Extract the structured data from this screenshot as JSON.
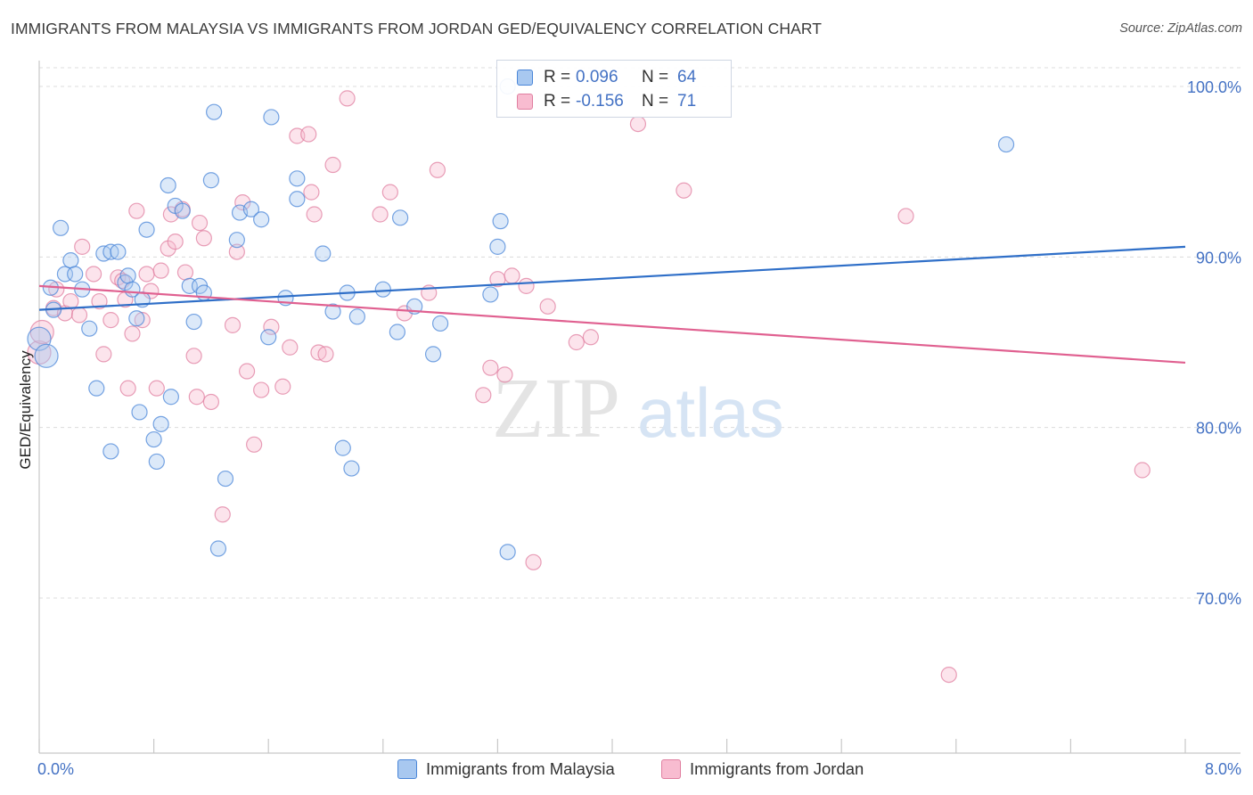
{
  "title": "IMMIGRANTS FROM MALAYSIA VS IMMIGRANTS FROM JORDAN GED/EQUIVALENCY CORRELATION CHART",
  "source": "Source: ZipAtlas.com",
  "watermark": {
    "zip": "ZIP",
    "atlas": "atlas"
  },
  "colors": {
    "malaysia_fill": "#a8c8f0",
    "malaysia_stroke": "#4a86d8",
    "malaysia_line": "#2f6fc8",
    "jordan_fill": "#f8bcd0",
    "jordan_stroke": "#e07fa0",
    "jordan_line": "#e06090",
    "tick_text": "#4472c4",
    "grid": "#dcdcdc"
  },
  "legend": {
    "rows": [
      {
        "r_label": "R =",
        "r_value": "0.096",
        "n_label": "N =",
        "n_value": "64"
      },
      {
        "r_label": "R =",
        "r_value": "-0.156",
        "n_label": "N =",
        "n_value": "71"
      }
    ],
    "bottom": [
      "Immigrants from Malaysia",
      "Immigrants from Jordan"
    ]
  },
  "chart_data": {
    "type": "scatter",
    "title": "IMMIGRANTS FROM MALAYSIA VS IMMIGRANTS FROM JORDAN GED/EQUIVALENCY CORRELATION CHART",
    "xlabel": "",
    "ylabel": "GED/Equivalency",
    "xlim": [
      0,
      8
    ],
    "ylim": [
      60,
      102
    ],
    "x_tick_labels": [
      "0.0%",
      "8.0%"
    ],
    "y_ticks": [
      70,
      80,
      90,
      100
    ],
    "y_tick_labels": [
      "70.0%",
      "80.0%",
      "90.0%",
      "100.0%"
    ],
    "grid": true,
    "legend_position": "top-center",
    "series": [
      {
        "name": "Immigrants from Malaysia",
        "r": 0.096,
        "n": 64,
        "trend": {
          "x": [
            0,
            8
          ],
          "y": [
            86.9,
            90.6
          ]
        },
        "points": [
          [
            0.0,
            85.2
          ],
          [
            0.05,
            84.2
          ],
          [
            0.08,
            88.2
          ],
          [
            0.1,
            86.9
          ],
          [
            0.15,
            91.7
          ],
          [
            0.18,
            89.0
          ],
          [
            0.22,
            89.8
          ],
          [
            0.25,
            89.0
          ],
          [
            0.3,
            88.1
          ],
          [
            0.35,
            85.8
          ],
          [
            0.4,
            82.3
          ],
          [
            0.45,
            90.2
          ],
          [
            0.5,
            90.3
          ],
          [
            0.5,
            78.6
          ],
          [
            0.55,
            90.3
          ],
          [
            0.6,
            88.5
          ],
          [
            0.62,
            88.9
          ],
          [
            0.65,
            88.1
          ],
          [
            0.68,
            86.4
          ],
          [
            0.7,
            80.9
          ],
          [
            0.72,
            87.5
          ],
          [
            0.75,
            91.6
          ],
          [
            0.8,
            79.3
          ],
          [
            0.82,
            78.0
          ],
          [
            0.85,
            80.2
          ],
          [
            0.9,
            94.2
          ],
          [
            0.92,
            81.8
          ],
          [
            0.95,
            93.0
          ],
          [
            1.0,
            92.7
          ],
          [
            1.05,
            88.3
          ],
          [
            1.08,
            86.2
          ],
          [
            1.12,
            88.3
          ],
          [
            1.15,
            87.9
          ],
          [
            1.2,
            94.5
          ],
          [
            1.22,
            98.5
          ],
          [
            1.25,
            72.9
          ],
          [
            1.3,
            77.0
          ],
          [
            1.38,
            91.0
          ],
          [
            1.4,
            92.6
          ],
          [
            1.48,
            92.8
          ],
          [
            1.55,
            92.2
          ],
          [
            1.6,
            85.3
          ],
          [
            1.62,
            98.2
          ],
          [
            1.72,
            87.6
          ],
          [
            1.8,
            94.6
          ],
          [
            1.8,
            93.4
          ],
          [
            1.98,
            90.2
          ],
          [
            2.05,
            86.8
          ],
          [
            2.12,
            78.8
          ],
          [
            2.15,
            87.9
          ],
          [
            2.18,
            77.6
          ],
          [
            2.22,
            86.5
          ],
          [
            2.4,
            88.1
          ],
          [
            2.5,
            85.6
          ],
          [
            2.52,
            92.3
          ],
          [
            2.62,
            87.1
          ],
          [
            2.75,
            84.3
          ],
          [
            2.8,
            86.1
          ],
          [
            3.15,
            87.8
          ],
          [
            3.2,
            90.6
          ],
          [
            3.22,
            92.1
          ],
          [
            3.27,
            72.7
          ],
          [
            3.27,
            100.0
          ],
          [
            6.75,
            96.6
          ]
        ]
      },
      {
        "name": "Immigrants from Jordan",
        "r": -0.156,
        "n": 71,
        "trend": {
          "x": [
            0,
            8
          ],
          "y": [
            88.3,
            83.8
          ]
        },
        "points": [
          [
            0.0,
            84.4
          ],
          [
            0.02,
            85.6
          ],
          [
            0.1,
            87.0
          ],
          [
            0.12,
            88.1
          ],
          [
            0.18,
            86.7
          ],
          [
            0.22,
            87.4
          ],
          [
            0.28,
            86.6
          ],
          [
            0.3,
            90.6
          ],
          [
            0.38,
            89.0
          ],
          [
            0.42,
            87.4
          ],
          [
            0.45,
            84.3
          ],
          [
            0.5,
            86.3
          ],
          [
            0.55,
            88.8
          ],
          [
            0.6,
            87.5
          ],
          [
            0.62,
            82.3
          ],
          [
            0.65,
            85.5
          ],
          [
            0.68,
            92.7
          ],
          [
            0.72,
            86.3
          ],
          [
            0.75,
            89.0
          ],
          [
            0.78,
            88.0
          ],
          [
            0.82,
            82.3
          ],
          [
            0.85,
            89.2
          ],
          [
            0.9,
            90.5
          ],
          [
            0.92,
            92.5
          ],
          [
            0.95,
            90.9
          ],
          [
            1.0,
            92.8
          ],
          [
            1.02,
            89.1
          ],
          [
            1.08,
            84.2
          ],
          [
            1.1,
            81.8
          ],
          [
            1.12,
            92.0
          ],
          [
            1.15,
            91.1
          ],
          [
            1.2,
            81.5
          ],
          [
            1.28,
            74.9
          ],
          [
            1.35,
            86.0
          ],
          [
            1.38,
            90.3
          ],
          [
            1.42,
            93.2
          ],
          [
            1.45,
            83.3
          ],
          [
            1.5,
            79.0
          ],
          [
            1.55,
            82.2
          ],
          [
            1.62,
            85.9
          ],
          [
            1.7,
            82.4
          ],
          [
            1.75,
            84.7
          ],
          [
            1.8,
            97.1
          ],
          [
            1.88,
            97.2
          ],
          [
            1.9,
            93.8
          ],
          [
            1.92,
            92.5
          ],
          [
            1.95,
            84.4
          ],
          [
            2.0,
            84.3
          ],
          [
            2.05,
            95.4
          ],
          [
            2.38,
            92.5
          ],
          [
            2.45,
            93.8
          ],
          [
            2.55,
            86.7
          ],
          [
            2.72,
            87.9
          ],
          [
            2.78,
            95.1
          ],
          [
            3.1,
            81.9
          ],
          [
            3.15,
            83.5
          ],
          [
            3.2,
            88.7
          ],
          [
            3.25,
            83.1
          ],
          [
            3.3,
            88.9
          ],
          [
            3.4,
            88.3
          ],
          [
            3.45,
            72.1
          ],
          [
            3.55,
            87.1
          ],
          [
            3.75,
            85.0
          ],
          [
            3.85,
            85.3
          ],
          [
            4.18,
            97.8
          ],
          [
            4.5,
            93.9
          ],
          [
            6.05,
            92.4
          ],
          [
            6.35,
            65.5
          ],
          [
            7.7,
            77.5
          ],
          [
            0.58,
            88.6
          ],
          [
            2.15,
            99.3
          ]
        ]
      }
    ]
  }
}
